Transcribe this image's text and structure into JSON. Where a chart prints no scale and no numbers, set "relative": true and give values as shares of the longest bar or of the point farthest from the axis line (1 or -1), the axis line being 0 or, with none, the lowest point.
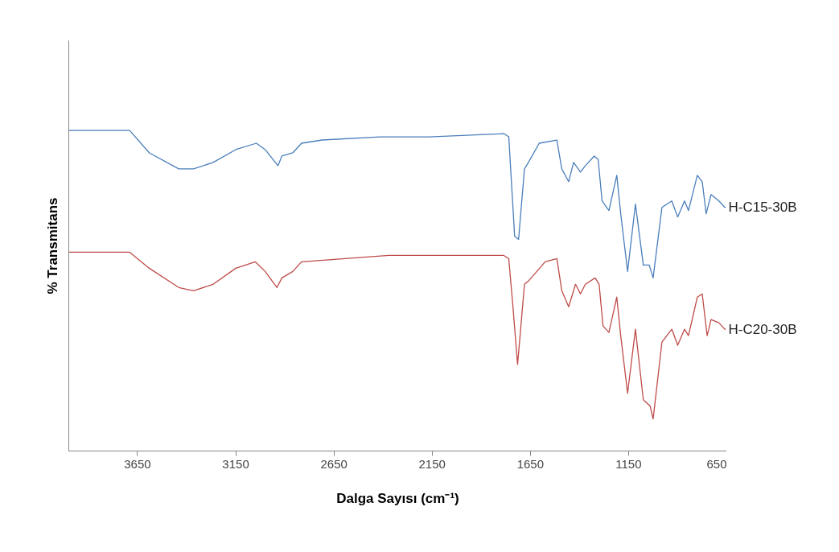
{
  "chart_data": {
    "type": "line",
    "xlabel": "Dalga Sayısı (cm⁻¹)",
    "ylabel": "% Transmitans",
    "relative": true,
    "xlim": [
      4000,
      650
    ],
    "xticks": [
      3650,
      3150,
      2650,
      2150,
      1650,
      1150,
      650
    ],
    "grid": false,
    "tick_labels": "x",
    "series": [
      {
        "name": "H-C15-30B",
        "color": "#4a7ebb",
        "x": [
          4000,
          3690,
          3590,
          3440,
          3365,
          3265,
          3150,
          3045,
          3000,
          2935,
          2915,
          2860,
          2815,
          2710,
          2415,
          2165,
          1785,
          1760,
          1730,
          1710,
          1680,
          1660,
          1605,
          1515,
          1490,
          1455,
          1430,
          1395,
          1370,
          1325,
          1305,
          1285,
          1250,
          1210,
          1190,
          1155,
          1115,
          1075,
          1045,
          1025,
          980,
          930,
          900,
          865,
          845,
          800,
          775,
          755,
          730,
          690,
          660,
          655
        ],
        "values": [
          1.0,
          1.0,
          0.93,
          0.88,
          0.88,
          0.9,
          0.94,
          0.96,
          0.94,
          0.89,
          0.92,
          0.93,
          0.96,
          0.97,
          0.98,
          0.98,
          0.99,
          0.98,
          0.67,
          0.66,
          0.88,
          0.9,
          0.96,
          0.97,
          0.88,
          0.84,
          0.9,
          0.87,
          0.89,
          0.92,
          0.91,
          0.78,
          0.75,
          0.86,
          0.74,
          0.56,
          0.77,
          0.58,
          0.58,
          0.54,
          0.76,
          0.78,
          0.73,
          0.78,
          0.75,
          0.86,
          0.84,
          0.74,
          0.8,
          0.78,
          0.76,
          0.76
        ]
      },
      {
        "name": "H-C20-30B",
        "color": "#be4b48",
        "x": [
          4000,
          3690,
          3590,
          3440,
          3365,
          3265,
          3150,
          3050,
          3000,
          2940,
          2915,
          2860,
          2815,
          2370,
          1785,
          1760,
          1740,
          1715,
          1680,
          1660,
          1575,
          1515,
          1490,
          1455,
          1420,
          1395,
          1370,
          1320,
          1300,
          1280,
          1250,
          1210,
          1190,
          1155,
          1115,
          1075,
          1040,
          1025,
          980,
          930,
          900,
          865,
          845,
          800,
          775,
          750,
          730,
          690,
          660,
          655
        ],
        "values": [
          0.62,
          0.62,
          0.57,
          0.51,
          0.5,
          0.52,
          0.57,
          0.59,
          0.56,
          0.51,
          0.54,
          0.56,
          0.59,
          0.61,
          0.61,
          0.6,
          0.46,
          0.27,
          0.52,
          0.53,
          0.59,
          0.6,
          0.5,
          0.45,
          0.52,
          0.49,
          0.52,
          0.54,
          0.52,
          0.39,
          0.37,
          0.48,
          0.36,
          0.18,
          0.38,
          0.16,
          0.14,
          0.1,
          0.34,
          0.38,
          0.33,
          0.38,
          0.36,
          0.48,
          0.49,
          0.36,
          0.41,
          0.4,
          0.38,
          0.38
        ]
      }
    ]
  }
}
